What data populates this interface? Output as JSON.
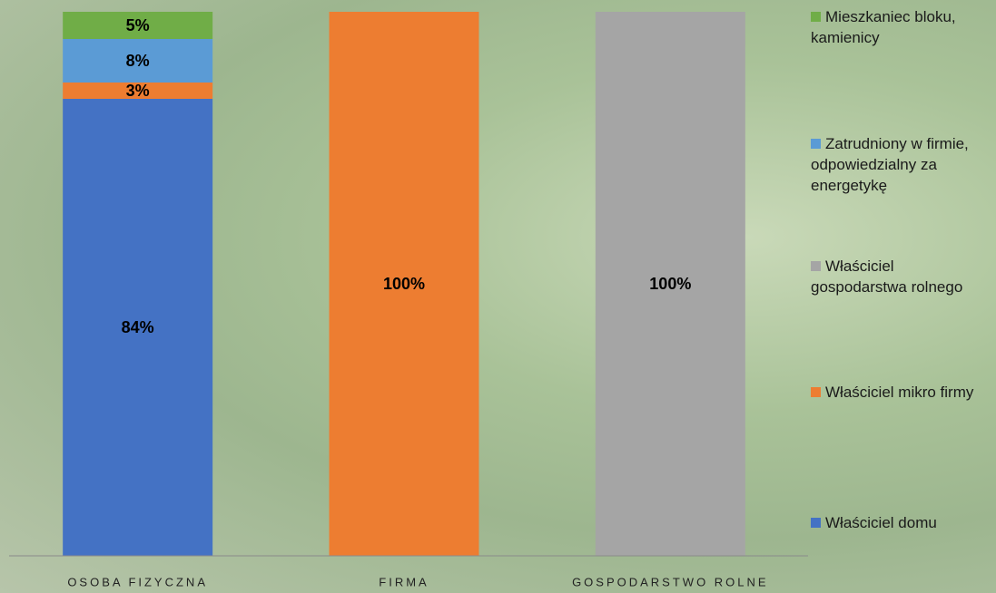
{
  "chart_data": {
    "type": "stacked_bar",
    "categories": [
      "OSOBA FIZYCZNA",
      "FIRMA",
      "GOSPODARSTWO ROLNE"
    ],
    "series": [
      {
        "name": "Właściciel domu",
        "color": "#4472c4",
        "values": [
          84,
          0,
          0
        ],
        "value_labels": [
          "84%",
          null,
          null
        ]
      },
      {
        "name": "Właściciel mikro firmy",
        "color": "#ed7d31",
        "values": [
          3,
          100,
          0
        ],
        "value_labels": [
          "3%",
          "100%",
          null
        ]
      },
      {
        "name": "Właściciel gospodarstwa rolnego",
        "color": "#a5a5a5",
        "values": [
          0,
          0,
          100
        ],
        "value_labels": [
          null,
          null,
          "100%"
        ]
      },
      {
        "name": "Zatrudniony w firmie, odpowiedzialny za energetykę",
        "color": "#5b9bd5",
        "values": [
          8,
          0,
          0
        ],
        "value_labels": [
          "8%",
          null,
          null
        ]
      },
      {
        "name": "Mieszkaniec bloku, kamienicy",
        "color": "#70ad47",
        "values": [
          5,
          0,
          0
        ],
        "value_labels": [
          "5%",
          null,
          null
        ]
      }
    ],
    "ylim": [
      0,
      100
    ],
    "legend": "right"
  }
}
